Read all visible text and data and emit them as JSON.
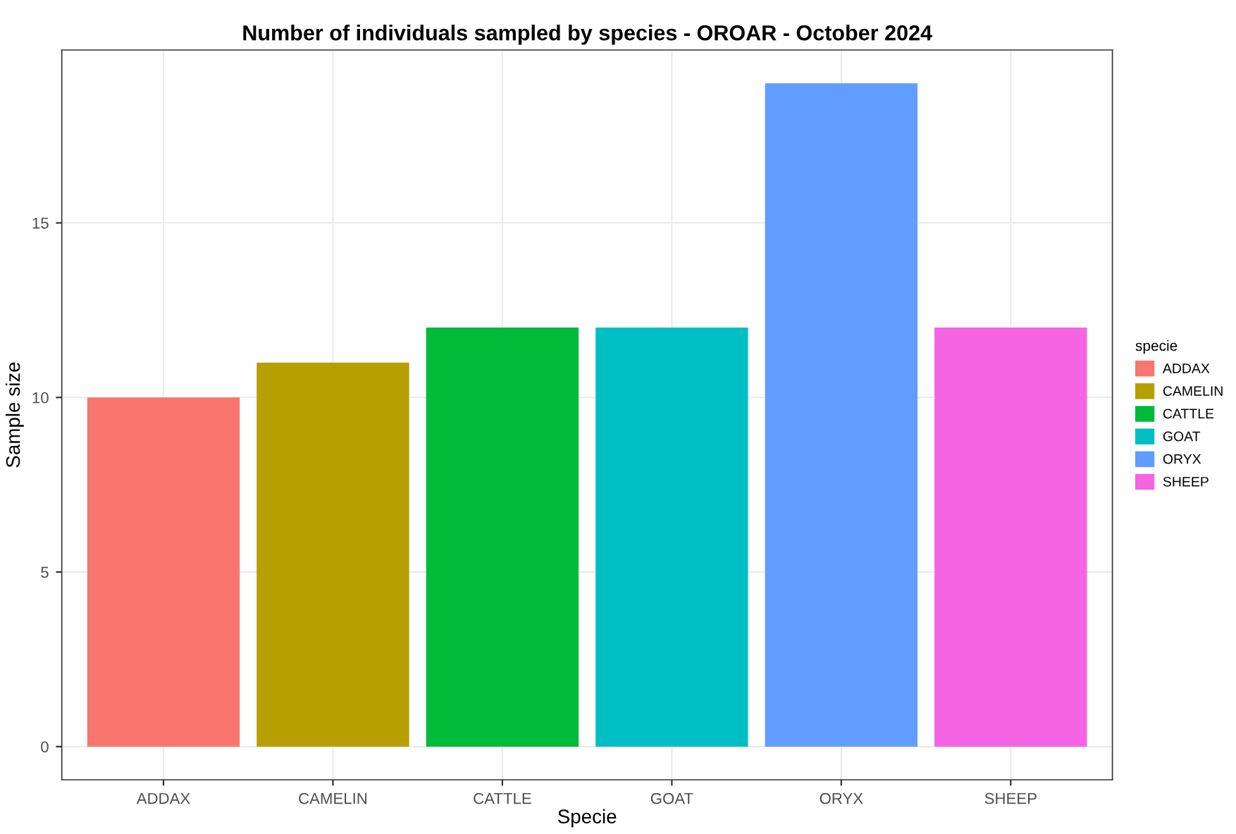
{
  "chart_data": {
    "type": "bar",
    "title": "Number of individuals sampled by species - OROAR - October 2024",
    "xlabel": "Specie",
    "ylabel": "Sample size",
    "legend_title": "specie",
    "categories": [
      "ADDAX",
      "CAMELIN",
      "CATTLE",
      "GOAT",
      "ORYX",
      "SHEEP"
    ],
    "series": [
      {
        "name": "ADDAX",
        "color": "#f8766d",
        "values": [
          10,
          null,
          null,
          null,
          null,
          null
        ]
      },
      {
        "name": "CAMELIN",
        "color": "#b79f00",
        "values": [
          null,
          11,
          null,
          null,
          null,
          null
        ]
      },
      {
        "name": "CATTLE",
        "color": "#00ba38",
        "values": [
          null,
          null,
          12,
          null,
          null,
          null
        ]
      },
      {
        "name": "GOAT",
        "color": "#00bfc4",
        "values": [
          null,
          null,
          null,
          12,
          null,
          null
        ]
      },
      {
        "name": "ORYX",
        "color": "#619cff",
        "values": [
          null,
          null,
          null,
          null,
          19,
          null
        ]
      },
      {
        "name": "SHEEP",
        "color": "#f564e3",
        "values": [
          null,
          null,
          null,
          null,
          null,
          12
        ]
      }
    ],
    "ylim": [
      -0.95,
      19.95
    ],
    "yticks": [
      0,
      5,
      10,
      15
    ],
    "grid": true,
    "legend": "right"
  }
}
